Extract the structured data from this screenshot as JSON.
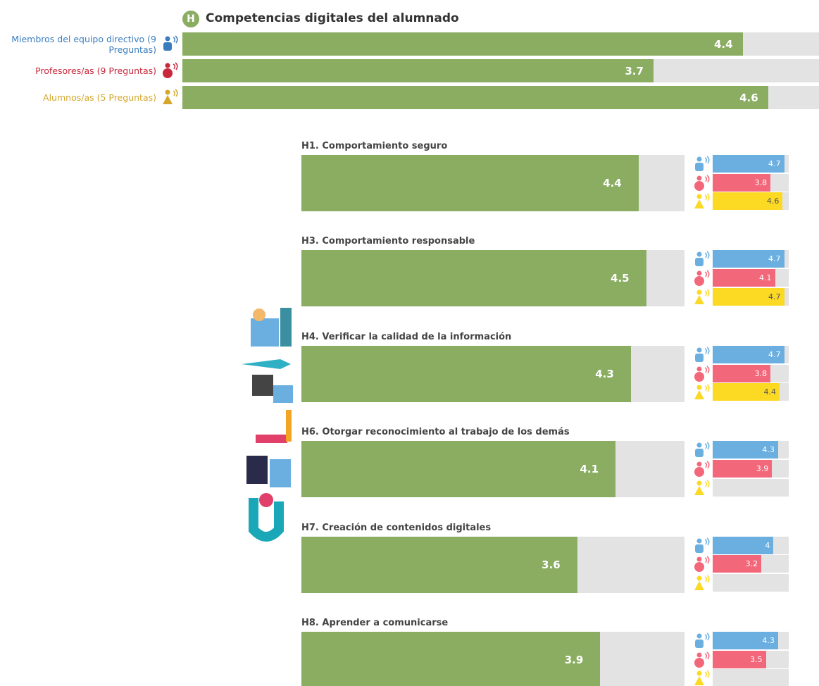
{
  "chart_data": [
    {
      "type": "bar",
      "badge": "H",
      "title": "Competencias digitales del alumnado",
      "categories": [
        "Miembros del equipo directivo (9 Preguntas)",
        "Profesores/as (9 Preguntas)",
        "Alumnos/as (5 Preguntas)"
      ],
      "category_colors": [
        "#3a7dbf",
        "#c8283c",
        "#d4a72c"
      ],
      "values": [
        4.4,
        3.7,
        4.6
      ],
      "color": "#8aad62",
      "xlim": [
        0,
        5
      ]
    },
    {
      "type": "bar",
      "title": "H1. Comportamiento seguro",
      "values": [
        4.4
      ],
      "color": "#8aad62",
      "xlim": [
        0,
        5
      ],
      "breakdown": {
        "values": [
          4.7,
          3.8,
          4.6
        ],
        "colors": [
          "#6aafe0",
          "#f2687a",
          "#fcd923"
        ],
        "xlim": [
          0,
          5
        ]
      }
    },
    {
      "type": "bar",
      "title": "H3. Comportamiento responsable",
      "values": [
        4.5
      ],
      "color": "#8aad62",
      "xlim": [
        0,
        5
      ],
      "breakdown": {
        "values": [
          4.7,
          4.1,
          4.7
        ],
        "colors": [
          "#6aafe0",
          "#f2687a",
          "#fcd923"
        ],
        "xlim": [
          0,
          5
        ]
      }
    },
    {
      "type": "bar",
      "title": "H4. Verificar la calidad de la información",
      "values": [
        4.3
      ],
      "color": "#8aad62",
      "xlim": [
        0,
        5
      ],
      "breakdown": {
        "values": [
          4.7,
          3.8,
          4.4
        ],
        "colors": [
          "#6aafe0",
          "#f2687a",
          "#fcd923"
        ],
        "xlim": [
          0,
          5
        ]
      }
    },
    {
      "type": "bar",
      "title": "H6. Otorgar reconocimiento al trabajo de los demás",
      "values": [
        4.1
      ],
      "color": "#8aad62",
      "xlim": [
        0,
        5
      ],
      "breakdown": {
        "values": [
          4.3,
          3.9,
          null
        ],
        "colors": [
          "#6aafe0",
          "#f2687a",
          "#fcd923"
        ],
        "xlim": [
          0,
          5
        ]
      }
    },
    {
      "type": "bar",
      "title": "H7. Creación de contenidos digitales",
      "values": [
        3.6
      ],
      "color": "#8aad62",
      "xlim": [
        0,
        5
      ],
      "breakdown": {
        "values": [
          4,
          3.2,
          null
        ],
        "colors": [
          "#6aafe0",
          "#f2687a",
          "#fcd923"
        ],
        "xlim": [
          0,
          5
        ]
      }
    },
    {
      "type": "bar",
      "title": "H8. Aprender a comunicarse",
      "values": [
        3.9
      ],
      "color": "#8aad62",
      "xlim": [
        0,
        5
      ],
      "breakdown": {
        "values": [
          4.3,
          3.5,
          null
        ],
        "colors": [
          "#6aafe0",
          "#f2687a",
          "#fcd923"
        ],
        "xlim": [
          0,
          5
        ]
      }
    }
  ]
}
